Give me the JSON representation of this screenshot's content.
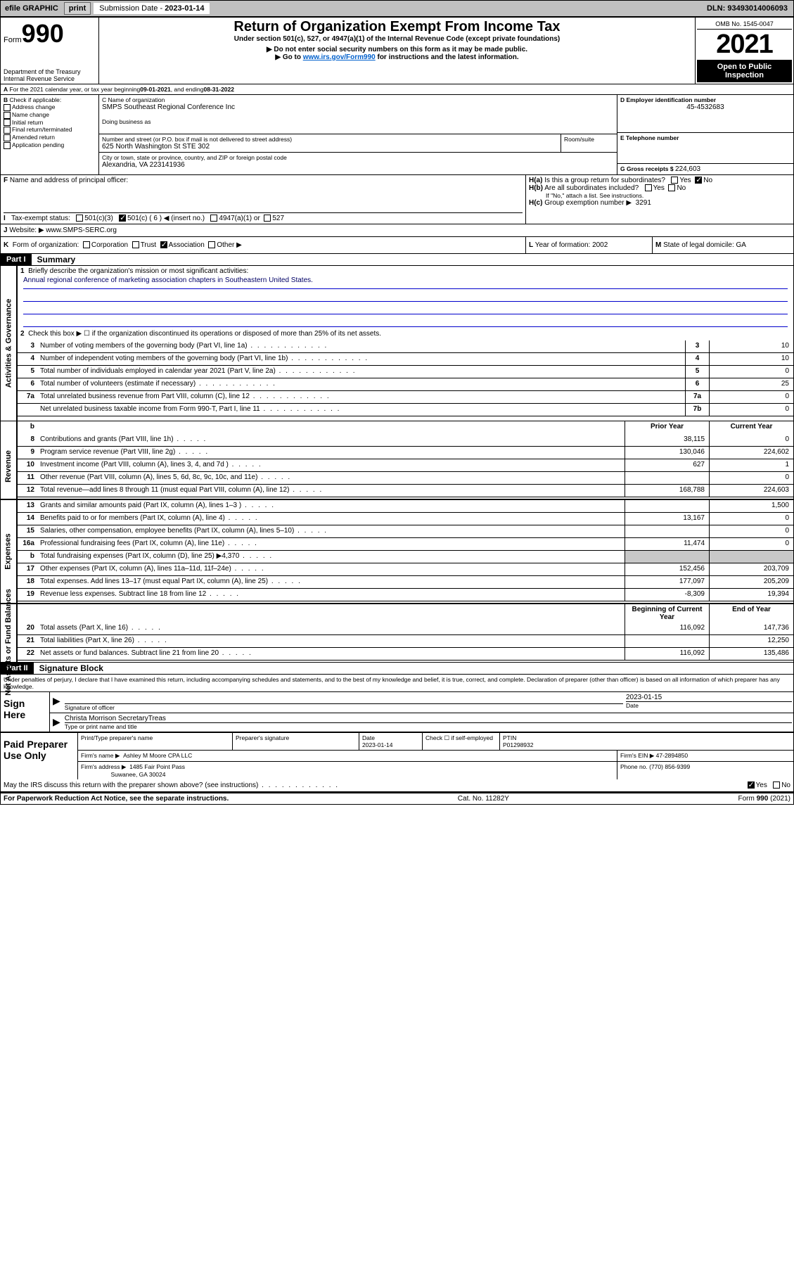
{
  "topbar": {
    "efile_label": "efile GRAPHIC",
    "print_btn": "print",
    "submission_label": "Submission Date - ",
    "submission_date": "2023-01-14",
    "dln_label": "DLN: ",
    "dln": "93493014006093"
  },
  "header": {
    "form_word": "Form",
    "form_no": "990",
    "dept": "Department of the Treasury",
    "irs": "Internal Revenue Service",
    "title": "Return of Organization Exempt From Income Tax",
    "sub1": "Under section 501(c), 527, or 4947(a)(1) of the Internal Revenue Code (except private foundations)",
    "sub2": "▶ Do not enter social security numbers on this form as it may be made public.",
    "sub3_a": "▶ Go to ",
    "sub3_link": "www.irs.gov/Form990",
    "sub3_b": " for instructions and the latest information.",
    "omb": "OMB No. 1545-0047",
    "year": "2021",
    "open": "Open to Public Inspection"
  },
  "section_a": {
    "a_label": "A",
    "a_text": "For the 2021 calendar year, or tax year beginning ",
    "begin": "09-01-2021",
    "mid": " , and ending ",
    "end": "08-31-2022",
    "b_label": "B",
    "b_check": "Check if applicable:",
    "b_items": [
      "Address change",
      "Name change",
      "Initial return",
      "Final return/terminated",
      "Amended return",
      "Application pending"
    ],
    "c_label": "C Name of organization",
    "c_name": "SMPS Southeast Regional Conference Inc",
    "dba_label": "Doing business as",
    "addr_label": "Number and street (or P.O. box if mail is not delivered to street address)",
    "room_label": "Room/suite",
    "addr": "625 North Washington St STE 302",
    "city_label": "City or town, state or province, country, and ZIP or foreign postal code",
    "city": "Alexandria, VA  223141936",
    "d_label": "D Employer identification number",
    "ein": "45-4532683",
    "e_label": "E Telephone number",
    "g_label": "G Gross receipts $ ",
    "g_val": "224,603",
    "f_label": "F",
    "f_text": "Name and address of principal officer:",
    "ha_label": "H(a)",
    "ha_text": "Is this a group return for subordinates?",
    "hb_label": "H(b)",
    "hb_text": "Are all subordinates included?",
    "hb_note": "If \"No,\" attach a list. See instructions.",
    "hc_label": "H(c)",
    "hc_text": "Group exemption number ▶",
    "hc_val": "3291",
    "yes": "Yes",
    "no": "No",
    "i_label": "I",
    "i_text": "Tax-exempt status:",
    "i_501c3": "501(c)(3)",
    "i_501c": "501(c) ( 6 ) ◀ (insert no.)",
    "i_4947": "4947(a)(1) or",
    "i_527": "527",
    "j_label": "J",
    "j_text": "Website: ▶",
    "j_val": "www.SMPS-SERC.org",
    "k_label": "K",
    "k_text": "Form of organization:",
    "k_corp": "Corporation",
    "k_trust": "Trust",
    "k_assoc": "Association",
    "k_other": "Other ▶",
    "l_label": "L",
    "l_text": "Year of formation: ",
    "l_val": "2002",
    "m_label": "M",
    "m_text": "State of legal domicile: ",
    "m_val": "GA"
  },
  "part_i": {
    "tag": "Part I",
    "title": "Summary",
    "q1": "Briefly describe the organization's mission or most significant activities:",
    "q1_ans": "Annual regional conference of marketing association chapters in Southeastern United States.",
    "q2": "Check this box ▶ ☐  if the organization discontinued its operations or disposed of more than 25% of its net assets.",
    "sections": {
      "gov": "Activities & Governance",
      "rev": "Revenue",
      "exp": "Expenses",
      "net": "Net Assets or Fund Balances"
    },
    "lines": [
      {
        "n": "3",
        "t": "Number of voting members of the governing body (Part VI, line 1a)",
        "box": "3",
        "val": "10"
      },
      {
        "n": "4",
        "t": "Number of independent voting members of the governing body (Part VI, line 1b)",
        "box": "4",
        "val": "10"
      },
      {
        "n": "5",
        "t": "Total number of individuals employed in calendar year 2021 (Part V, line 2a)",
        "box": "5",
        "val": "0"
      },
      {
        "n": "6",
        "t": "Total number of volunteers (estimate if necessary)",
        "box": "6",
        "val": "25"
      },
      {
        "n": "7a",
        "t": "Total unrelated business revenue from Part VIII, column (C), line 12",
        "box": "7a",
        "val": "0"
      },
      {
        "n": "",
        "t": "Net unrelated business taxable income from Form 990-T, Part I, line 11",
        "box": "7b",
        "val": "0"
      }
    ],
    "dual_hdr": {
      "prior": "Prior Year",
      "curr": "Current Year"
    },
    "rev_lines": [
      {
        "n": "8",
        "t": "Contributions and grants (Part VIII, line 1h)",
        "p": "38,115",
        "c": "0"
      },
      {
        "n": "9",
        "t": "Program service revenue (Part VIII, line 2g)",
        "p": "130,046",
        "c": "224,602"
      },
      {
        "n": "10",
        "t": "Investment income (Part VIII, column (A), lines 3, 4, and 7d )",
        "p": "627",
        "c": "1"
      },
      {
        "n": "11",
        "t": "Other revenue (Part VIII, column (A), lines 5, 6d, 8c, 9c, 10c, and 11e)",
        "p": "",
        "c": "0"
      },
      {
        "n": "12",
        "t": "Total revenue—add lines 8 through 11 (must equal Part VIII, column (A), line 12)",
        "p": "168,788",
        "c": "224,603"
      }
    ],
    "exp_lines": [
      {
        "n": "13",
        "t": "Grants and similar amounts paid (Part IX, column (A), lines 1–3 )",
        "p": "",
        "c": "1,500"
      },
      {
        "n": "14",
        "t": "Benefits paid to or for members (Part IX, column (A), line 4)",
        "p": "13,167",
        "c": "0"
      },
      {
        "n": "15",
        "t": "Salaries, other compensation, employee benefits (Part IX, column (A), lines 5–10)",
        "p": "",
        "c": "0"
      },
      {
        "n": "16a",
        "t": "Professional fundraising fees (Part IX, column (A), line 11e)",
        "p": "11,474",
        "c": "0"
      },
      {
        "n": "b",
        "t": "Total fundraising expenses (Part IX, column (D), line 25) ▶4,370",
        "p": "",
        "c": "",
        "shade": true
      },
      {
        "n": "17",
        "t": "Other expenses (Part IX, column (A), lines 11a–11d, 11f–24e)",
        "p": "152,456",
        "c": "203,709"
      },
      {
        "n": "18",
        "t": "Total expenses. Add lines 13–17 (must equal Part IX, column (A), line 25)",
        "p": "177,097",
        "c": "205,209"
      },
      {
        "n": "19",
        "t": "Revenue less expenses. Subtract line 18 from line 12",
        "p": "-8,309",
        "c": "19,394"
      }
    ],
    "net_hdr": {
      "begin": "Beginning of Current Year",
      "end": "End of Year"
    },
    "net_lines": [
      {
        "n": "20",
        "t": "Total assets (Part X, line 16)",
        "p": "116,092",
        "c": "147,736"
      },
      {
        "n": "21",
        "t": "Total liabilities (Part X, line 26)",
        "p": "",
        "c": "12,250"
      },
      {
        "n": "22",
        "t": "Net assets or fund balances. Subtract line 21 from line 20",
        "p": "116,092",
        "c": "135,486"
      }
    ]
  },
  "part_ii": {
    "tag": "Part II",
    "title": "Signature Block",
    "declare": "Under penalties of perjury, I declare that I have examined this return, including accompanying schedules and statements, and to the best of my knowledge and belief, it is true, correct, and complete. Declaration of preparer (other than officer) is based on all information of which preparer has any knowledge.",
    "sign_here": "Sign Here",
    "sig_officer": "Signature of officer",
    "sig_date_label": "Date",
    "sig_date": "2023-01-15",
    "name_title": "Christa Morrison SecretaryTreas",
    "name_sub": "Type or print name and title",
    "paid_prep": "Paid Preparer Use Only",
    "print_name": "Print/Type preparer's name",
    "prep_sig": "Preparer's signature",
    "date_label": "Date",
    "date_val": "2023-01-14",
    "check_self": "Check ☐ if self-employed",
    "ptin_label": "PTIN",
    "ptin": "P01298932",
    "firm_name_label": "Firm's name    ▶",
    "firm_name": "Ashley M Moore CPA LLC",
    "firm_ein_label": "Firm's EIN ▶",
    "firm_ein": "47-2894850",
    "firm_addr_label": "Firm's address ▶",
    "firm_addr": "1485 Fair Point Pass",
    "firm_city": "Suwanee, GA  30024",
    "phone_label": "Phone no. ",
    "phone": "(770) 856-9399",
    "may_irs": "May the IRS discuss this return with the preparer shown above? (see instructions)"
  },
  "footer": {
    "pra": "For Paperwork Reduction Act Notice, see the separate instructions.",
    "cat": "Cat. No. 11282Y",
    "form": "Form 990 (2021)"
  },
  "colors": {
    "bg": "#ffffff",
    "topbar": "#c0c0c0",
    "link": "#0060cc",
    "shade": "#c8c8c8",
    "black": "#000000"
  }
}
